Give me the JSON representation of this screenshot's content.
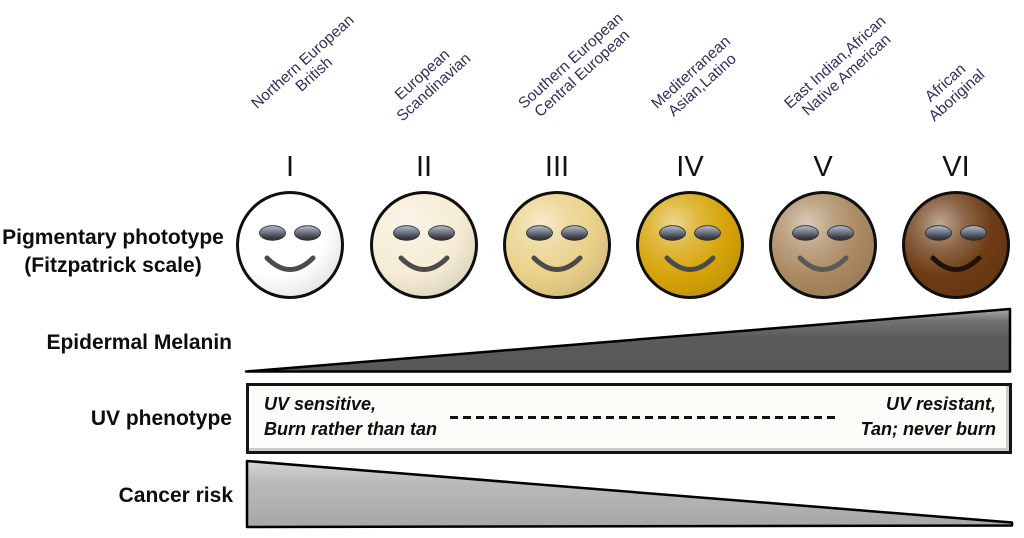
{
  "diagram": {
    "row_labels": {
      "pigmentary_line1": "Pigmentary phototype",
      "pigmentary_line2": "(Fitzpatrick scale)",
      "melanin": "Epidermal Melanin",
      "uv": "UV phenotype",
      "cancer": "Cancer risk"
    },
    "phototypes": [
      {
        "numeral": "I",
        "ethnic_lines": [
          "Northern European",
          "British"
        ],
        "face_color": "#ffffff",
        "smile_color": "#4b4b4b"
      },
      {
        "numeral": "II",
        "ethnic_lines": [
          "European",
          "Scandinavian"
        ],
        "face_color": "#f6ecd4",
        "smile_color": "#4b4b4b"
      },
      {
        "numeral": "III",
        "ethnic_lines": [
          "Southern European",
          "Central European"
        ],
        "face_color": "#ead189",
        "smile_color": "#4b4b4b"
      },
      {
        "numeral": "IV",
        "ethnic_lines": [
          "Mediterranean",
          "Asian,Latino"
        ],
        "face_color": "#d7a408",
        "smile_color": "#4b4b4b"
      },
      {
        "numeral": "V",
        "ethnic_lines": [
          "East Indian,African",
          "Native American"
        ],
        "face_color": "#ab8a62",
        "smile_color": "#5a5a5a"
      },
      {
        "numeral": "VI",
        "ethnic_lines": [
          "African",
          "Aboriginal"
        ],
        "face_color": "#6e3c14",
        "smile_color": "#1f1206"
      }
    ],
    "uv_phenotype": {
      "left": [
        "UV sensitive,",
        "Burn rather than tan"
      ],
      "right": [
        "UV resistant,",
        "Tan; never burn"
      ]
    },
    "colors": {
      "ethnic_label": "#30305f",
      "melanin_fill": "#5d5a5a",
      "cancer_fill": "#b5b3b3",
      "uv_box_fill": "#fbfbf7",
      "outline": "#0f0f0f"
    }
  }
}
